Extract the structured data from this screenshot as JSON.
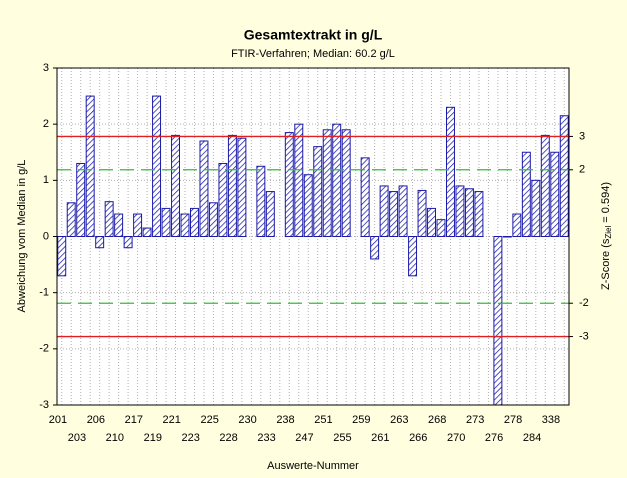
{
  "chart_data": {
    "type": "bar",
    "title": "Gesamtextrakt in g/L",
    "subtitle": "FTIR-Verfahren; Median: 60.2 g/L",
    "x_label": "Auswerte-Nummer",
    "y_label": "Abweichung vom Median in g/L",
    "y2_label": {
      "main": "Z-Score (s",
      "sub": "Ziel",
      "rest": " = 0.594)"
    },
    "categories": [
      "201",
      null,
      "203",
      null,
      "206",
      null,
      "210",
      null,
      "217",
      null,
      "219",
      null,
      "221",
      null,
      "223",
      null,
      "225",
      null,
      "228",
      null,
      "230",
      null,
      "233",
      null,
      "238",
      null,
      "247",
      null,
      "251",
      null,
      "255",
      null,
      "259",
      null,
      "261",
      null,
      "263",
      null,
      "266",
      null,
      "268",
      null,
      "270",
      null,
      "273",
      null,
      "276",
      null,
      "278",
      null,
      "284",
      null,
      "338",
      null
    ],
    "values": [
      -0.7,
      0.6,
      1.3,
      2.5,
      -0.2,
      0.62,
      0.4,
      -0.2,
      0.4,
      0.15,
      2.5,
      0.5,
      1.8,
      0.4,
      0.5,
      1.7,
      0.6,
      1.3,
      1.8,
      1.75,
      null,
      1.25,
      0.8,
      null,
      1.85,
      2.0,
      1.1,
      1.6,
      1.9,
      2.0,
      1.9,
      null,
      1.4,
      -0.4,
      0.9,
      0.8,
      0.9,
      -0.7,
      0.82,
      0.5,
      0.3,
      2.3,
      0.9,
      0.85,
      0.8,
      null,
      -3.2,
      0.0,
      0.4,
      1.5,
      1.0,
      1.8,
      1.5,
      2.15
    ],
    "color": "#1a1aa8",
    "ylim": [
      -3,
      3
    ],
    "yticks": [
      -3,
      -2,
      -1,
      0,
      1,
      2,
      3
    ],
    "y2lim": [
      -5.051,
      5.051
    ],
    "y2ticks": [
      -3,
      -2,
      2,
      3
    ],
    "reference_lines": [
      {
        "axis": "y2",
        "value": 3,
        "color": "#e02020",
        "dash": false
      },
      {
        "axis": "y2",
        "value": 2,
        "color": "#30c030",
        "dash": true
      },
      {
        "axis": "y2",
        "value": -2,
        "color": "#30c030",
        "dash": true
      },
      {
        "axis": "y2",
        "value": -3,
        "color": "#e02020",
        "dash": false
      }
    ],
    "grid": true
  }
}
